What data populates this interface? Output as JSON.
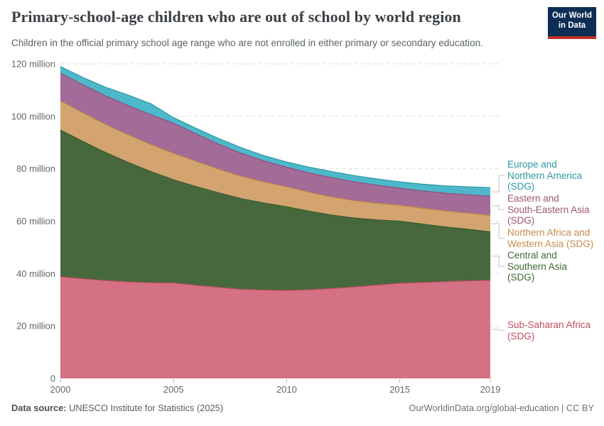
{
  "header": {
    "title": "Primary-school-age children who are out of school by world region",
    "subtitle": "Children in the official primary school age range who are not enrolled in either primary or secondary education.",
    "logo": {
      "line1": "Our World",
      "line2": "in Data",
      "bg_color": "#0d2e54",
      "accent_color": "#c0312b"
    }
  },
  "chart_data": {
    "type": "area",
    "stacked": true,
    "title": "Primary-school-age children who are out of school by world region",
    "xlabel": "",
    "ylabel": "",
    "x": [
      2000,
      2001,
      2002,
      2003,
      2004,
      2005,
      2006,
      2007,
      2008,
      2009,
      2010,
      2011,
      2012,
      2013,
      2014,
      2015,
      2016,
      2017,
      2018,
      2019
    ],
    "series": [
      {
        "name": "Sub-Saharan Africa (SDG)",
        "fill": "#D47185",
        "line": "#C04F63",
        "values": [
          38.8,
          38.0,
          37.3,
          36.8,
          36.5,
          36.4,
          35.5,
          34.7,
          34.0,
          33.7,
          33.5,
          33.8,
          34.3,
          34.9,
          35.6,
          36.3,
          36.6,
          36.9,
          37.2,
          37.4
        ]
      },
      {
        "name": "Central and Southern Asia (SDG)",
        "fill": "#47683C",
        "line": "#3A5A2F",
        "values": [
          56.0,
          52.4,
          48.9,
          45.6,
          42.4,
          39.4,
          37.7,
          36.1,
          34.6,
          33.2,
          32.0,
          30.0,
          28.0,
          26.3,
          24.9,
          23.7,
          22.3,
          20.9,
          19.7,
          18.5
        ]
      },
      {
        "name": "Northern Africa and Western Asia (SDG)",
        "fill": "#D3A470",
        "line": "#C08843",
        "values": [
          11.1,
          10.9,
          10.7,
          10.5,
          10.3,
          10.1,
          9.6,
          9.0,
          8.5,
          8.0,
          7.6,
          7.2,
          6.9,
          6.6,
          6.3,
          6.1,
          6.0,
          6.1,
          6.2,
          6.3
        ]
      },
      {
        "name": "Eastern and South-Eastern Asia (SDG)",
        "fill": "#A26B98",
        "line": "#8E4F7F",
        "values": [
          10.6,
          10.7,
          10.9,
          11.2,
          11.4,
          11.5,
          10.5,
          9.6,
          8.8,
          8.1,
          7.5,
          7.4,
          7.4,
          7.2,
          6.9,
          6.5,
          6.6,
          6.8,
          7.0,
          7.3
        ]
      },
      {
        "name": "Europe and Northern America (SDG)",
        "fill": "#4DB8C9",
        "line": "#2E98A6",
        "values": [
          2.5,
          2.8,
          3.3,
          4.0,
          4.2,
          2.1,
          2.1,
          2.1,
          2.1,
          2.0,
          2.0,
          2.2,
          2.3,
          2.4,
          2.4,
          2.4,
          2.6,
          2.8,
          3.0,
          3.3
        ]
      }
    ],
    "ylim": [
      0,
      120
    ],
    "yticks": [
      {
        "value": 0,
        "label": "0"
      },
      {
        "value": 20,
        "label": "20 million"
      },
      {
        "value": 40,
        "label": "40 million"
      },
      {
        "value": 60,
        "label": "60 million"
      },
      {
        "value": 80,
        "label": "80 million"
      },
      {
        "value": 100,
        "label": "100 million"
      },
      {
        "value": 120,
        "label": "120 million"
      }
    ],
    "xticks": [
      {
        "value": 2000,
        "label": "2000"
      },
      {
        "value": 2005,
        "label": "2005"
      },
      {
        "value": 2010,
        "label": "2010"
      },
      {
        "value": 2015,
        "label": "2015"
      },
      {
        "value": 2019,
        "label": "2019"
      }
    ],
    "grid": "horizontal-dashed",
    "legend_position": "right"
  },
  "legend": {
    "items": [
      {
        "label": "Europe and\nNorthern America\n(SDG)",
        "color": "#2E98A6",
        "series_index": 4
      },
      {
        "label": "Eastern and\nSouth-Eastern Asia\n(SDG)",
        "color": "#9C5674",
        "series_index": 3
      },
      {
        "label": "Northern Africa and\nWestern Asia (SDG)",
        "color": "#CA8B4F",
        "series_index": 2
      },
      {
        "label": "Central and\nSouthern Asia\n(SDG)",
        "color": "#3E6A35",
        "series_index": 1
      },
      {
        "label": "Sub-Saharan Africa\n(SDG)",
        "color": "#C04F63",
        "series_index": 0
      }
    ]
  },
  "footer": {
    "source_label": "Data source:",
    "source_value": " UNESCO Institute for Statistics (2025)",
    "credit": "OurWorldinData.org/global-education | CC BY"
  }
}
